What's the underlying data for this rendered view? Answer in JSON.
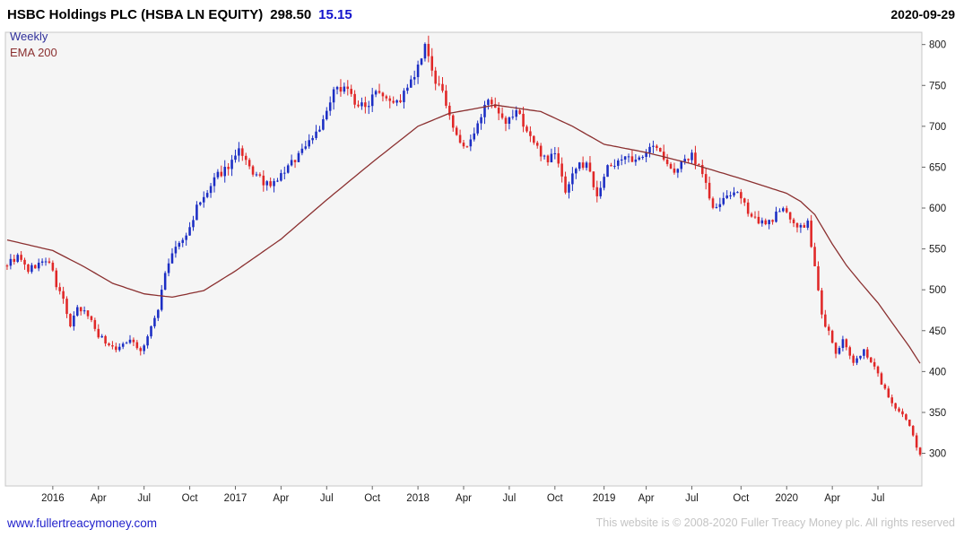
{
  "header": {
    "instrument": "HSBC Holdings PLC (HSBA LN EQUITY)",
    "last_price": "298.50",
    "change": "15.15",
    "date": "2020-09-29"
  },
  "legend": {
    "timeframe_label": "Weekly",
    "indicator_label": "EMA 200"
  },
  "footer": {
    "site_link": "www.fullertreacymoney.com",
    "copyright": "This website is © 2008-2020 Fuller Treacy Money plc. All rights reserved"
  },
  "chart_data": {
    "type": "candlestick",
    "title": "HSBC Holdings PLC (HSBA LN EQUITY)",
    "frequency": "weekly",
    "x_range": [
      "2015-10-05",
      "2020-09-28"
    ],
    "ylim": [
      260,
      815
    ],
    "y_ticks": [
      300,
      350,
      400,
      450,
      500,
      550,
      600,
      650,
      700,
      750,
      800
    ],
    "x_tick_labels": [
      "2016",
      "Apr",
      "Jul",
      "Oct",
      "2017",
      "Apr",
      "Jul",
      "Oct",
      "2018",
      "Apr",
      "Jul",
      "Oct",
      "2019",
      "Apr",
      "Jul",
      "Oct",
      "2020",
      "Apr",
      "Jul"
    ],
    "grid": false,
    "legend_position": "top-left",
    "last_close": 298.5,
    "series": [
      {
        "name": "HSBA LN weekly price",
        "type": "candlestick"
      },
      {
        "name": "EMA 200",
        "type": "line"
      }
    ],
    "price_anchors": [
      [
        "2015-10-05",
        532
      ],
      [
        "2015-10-26",
        540
      ],
      [
        "2015-11-16",
        524
      ],
      [
        "2015-12-07",
        532
      ],
      [
        "2015-12-28",
        535
      ],
      [
        "2016-01-11",
        505
      ],
      [
        "2016-01-25",
        488
      ],
      [
        "2016-02-08",
        455
      ],
      [
        "2016-02-22",
        476
      ],
      [
        "2016-03-14",
        470
      ],
      [
        "2016-04-04",
        445
      ],
      [
        "2016-04-25",
        432
      ],
      [
        "2016-05-16",
        428
      ],
      [
        "2016-06-06",
        442
      ],
      [
        "2016-06-27",
        424
      ],
      [
        "2016-07-18",
        452
      ],
      [
        "2016-08-01",
        478
      ],
      [
        "2016-08-15",
        522
      ],
      [
        "2016-09-05",
        552
      ],
      [
        "2016-09-26",
        565
      ],
      [
        "2016-10-17",
        600
      ],
      [
        "2016-11-07",
        618
      ],
      [
        "2016-11-28",
        640
      ],
      [
        "2016-12-19",
        652
      ],
      [
        "2017-01-09",
        668
      ],
      [
        "2017-01-30",
        648
      ],
      [
        "2017-02-20",
        635
      ],
      [
        "2017-03-13",
        625
      ],
      [
        "2017-04-03",
        640
      ],
      [
        "2017-04-24",
        655
      ],
      [
        "2017-05-15",
        672
      ],
      [
        "2017-06-05",
        688
      ],
      [
        "2017-06-26",
        705
      ],
      [
        "2017-07-17",
        740
      ],
      [
        "2017-08-07",
        752
      ],
      [
        "2017-08-28",
        730
      ],
      [
        "2017-09-18",
        722
      ],
      [
        "2017-10-09",
        748
      ],
      [
        "2017-10-30",
        738
      ],
      [
        "2017-11-20",
        728
      ],
      [
        "2017-12-11",
        745
      ],
      [
        "2018-01-01",
        770
      ],
      [
        "2018-01-15",
        795
      ],
      [
        "2018-02-05",
        755
      ],
      [
        "2018-02-26",
        730
      ],
      [
        "2018-03-19",
        685
      ],
      [
        "2018-04-09",
        672
      ],
      [
        "2018-04-30",
        700
      ],
      [
        "2018-05-14",
        732
      ],
      [
        "2018-06-04",
        718
      ],
      [
        "2018-06-25",
        700
      ],
      [
        "2018-07-16",
        720
      ],
      [
        "2018-08-06",
        695
      ],
      [
        "2018-08-27",
        672
      ],
      [
        "2018-09-17",
        660
      ],
      [
        "2018-10-01",
        668
      ],
      [
        "2018-10-22",
        622
      ],
      [
        "2018-11-12",
        650
      ],
      [
        "2018-12-03",
        655
      ],
      [
        "2018-12-24",
        618
      ],
      [
        "2019-01-14",
        648
      ],
      [
        "2019-02-11",
        662
      ],
      [
        "2019-03-11",
        655
      ],
      [
        "2019-04-08",
        678
      ],
      [
        "2019-04-29",
        668
      ],
      [
        "2019-05-20",
        645
      ],
      [
        "2019-06-10",
        652
      ],
      [
        "2019-07-01",
        665
      ],
      [
        "2019-07-22",
        645
      ],
      [
        "2019-08-12",
        598
      ],
      [
        "2019-09-02",
        608
      ],
      [
        "2019-09-23",
        622
      ],
      [
        "2019-10-14",
        602
      ],
      [
        "2019-11-04",
        588
      ],
      [
        "2019-11-25",
        578
      ],
      [
        "2019-12-16",
        592
      ],
      [
        "2020-01-06",
        598
      ],
      [
        "2020-01-27",
        575
      ],
      [
        "2020-02-17",
        580
      ],
      [
        "2020-03-02",
        528
      ],
      [
        "2020-03-16",
        468
      ],
      [
        "2020-03-30",
        448
      ],
      [
        "2020-04-13",
        422
      ],
      [
        "2020-04-27",
        438
      ],
      [
        "2020-05-18",
        408
      ],
      [
        "2020-06-08",
        428
      ],
      [
        "2020-06-29",
        405
      ],
      [
        "2020-07-20",
        378
      ],
      [
        "2020-08-10",
        352
      ],
      [
        "2020-08-31",
        342
      ],
      [
        "2020-09-14",
        322
      ],
      [
        "2020-09-21",
        308
      ],
      [
        "2020-09-28",
        298.5
      ]
    ],
    "ema_anchors": [
      [
        "2015-10-05",
        561
      ],
      [
        "2016-01-04",
        548
      ],
      [
        "2016-03-07",
        528
      ],
      [
        "2016-05-02",
        508
      ],
      [
        "2016-07-04",
        495
      ],
      [
        "2016-08-29",
        491
      ],
      [
        "2016-10-31",
        499
      ],
      [
        "2017-01-02",
        523
      ],
      [
        "2017-04-03",
        562
      ],
      [
        "2017-07-03",
        610
      ],
      [
        "2017-10-02",
        656
      ],
      [
        "2018-01-01",
        700
      ],
      [
        "2018-03-05",
        716
      ],
      [
        "2018-06-04",
        726
      ],
      [
        "2018-09-03",
        718
      ],
      [
        "2018-11-05",
        700
      ],
      [
        "2019-01-07",
        678
      ],
      [
        "2019-04-01",
        668
      ],
      [
        "2019-07-01",
        654
      ],
      [
        "2019-10-07",
        636
      ],
      [
        "2020-01-06",
        618
      ],
      [
        "2020-02-03",
        608
      ],
      [
        "2020-03-02",
        592
      ],
      [
        "2020-04-06",
        556
      ],
      [
        "2020-05-04",
        530
      ],
      [
        "2020-06-01",
        509
      ],
      [
        "2020-07-06",
        484
      ],
      [
        "2020-08-03",
        460
      ],
      [
        "2020-09-07",
        430
      ],
      [
        "2020-09-28",
        410
      ]
    ],
    "colors": {
      "up": "#1c2ec4",
      "down": "#e02727",
      "ema": "#8b3030",
      "axis_text": "#1a1a1a",
      "tick": "#666666",
      "plot_bg": "#f5f5f5",
      "border": "#c8c8c8",
      "change_text": "#1414cc",
      "link": "#2222cc",
      "copyright_text": "#c4c4c4"
    },
    "render_seed": 9
  }
}
